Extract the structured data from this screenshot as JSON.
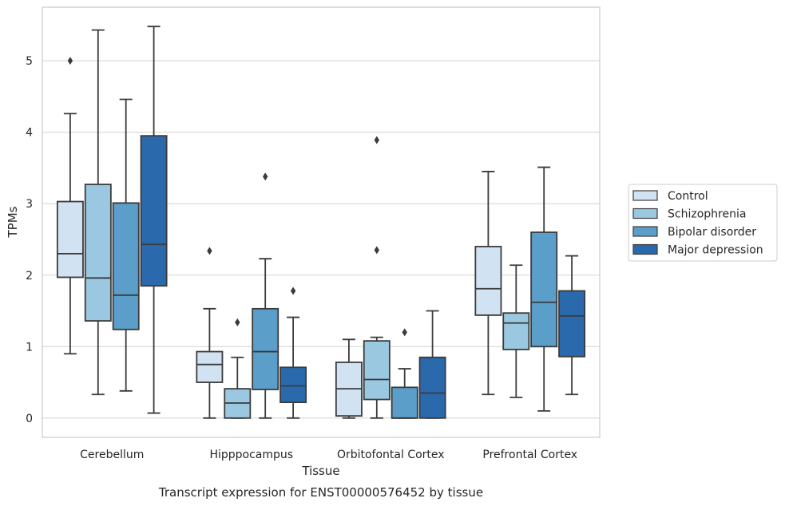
{
  "chart_data": {
    "type": "boxplot",
    "xlabel": "Tissue",
    "ylabel": "TPMs",
    "caption": "Transcript expression for ENST00000576452 by tissue",
    "categories": [
      "Cerebellum",
      "Hipppocampus",
      "Orbitofontal Cortex",
      "Prefrontal Cortex"
    ],
    "ylim": [
      -0.27,
      5.75
    ],
    "yticks": [
      0,
      1,
      2,
      3,
      4,
      5
    ],
    "grid": true,
    "legend_position": "right",
    "series": [
      {
        "name": "Control",
        "color": "#d1e2f2",
        "boxes": [
          {
            "whisker_low": 0.9,
            "q1": 1.97,
            "median": 2.3,
            "q3": 3.03,
            "whisker_high": 4.26,
            "outliers": [
              5.0
            ]
          },
          {
            "whisker_low": 0.0,
            "q1": 0.5,
            "median": 0.75,
            "q3": 0.93,
            "whisker_high": 1.53,
            "outliers": [
              2.34
            ]
          },
          {
            "whisker_low": 0.0,
            "q1": 0.03,
            "median": 0.41,
            "q3": 0.78,
            "whisker_high": 1.1,
            "outliers": []
          },
          {
            "whisker_low": 0.33,
            "q1": 1.44,
            "median": 1.81,
            "q3": 2.4,
            "whisker_high": 3.45,
            "outliers": []
          }
        ]
      },
      {
        "name": "Schizophrenia",
        "color": "#9ac8e0",
        "boxes": [
          {
            "whisker_low": 0.33,
            "q1": 1.36,
            "median": 1.96,
            "q3": 3.27,
            "whisker_high": 5.43,
            "outliers": []
          },
          {
            "whisker_low": 0.0,
            "q1": 0.0,
            "median": 0.21,
            "q3": 0.41,
            "whisker_high": 0.85,
            "outliers": [
              1.34
            ]
          },
          {
            "whisker_low": 0.0,
            "q1": 0.26,
            "median": 0.54,
            "q3": 1.08,
            "whisker_high": 1.13,
            "outliers": [
              2.35,
              3.89
            ]
          },
          {
            "whisker_low": 0.29,
            "q1": 0.96,
            "median": 1.33,
            "q3": 1.47,
            "whisker_high": 2.14,
            "outliers": []
          }
        ]
      },
      {
        "name": "Bipolar disorder",
        "color": "#5a9ec9",
        "boxes": [
          {
            "whisker_low": 0.38,
            "q1": 1.24,
            "median": 1.72,
            "q3": 3.01,
            "whisker_high": 4.46,
            "outliers": []
          },
          {
            "whisker_low": 0.0,
            "q1": 0.4,
            "median": 0.93,
            "q3": 1.53,
            "whisker_high": 2.23,
            "outliers": [
              3.38
            ]
          },
          {
            "whisker_low": 0.0,
            "q1": 0.0,
            "median": 0.0,
            "q3": 0.43,
            "whisker_high": 0.69,
            "outliers": [
              1.2
            ]
          },
          {
            "whisker_low": 0.1,
            "q1": 1.0,
            "median": 1.62,
            "q3": 2.6,
            "whisker_high": 3.51,
            "outliers": []
          }
        ]
      },
      {
        "name": "Major depression",
        "color": "#2a6aac",
        "boxes": [
          {
            "whisker_low": 0.07,
            "q1": 1.85,
            "median": 2.43,
            "q3": 3.95,
            "whisker_high": 5.48,
            "outliers": []
          },
          {
            "whisker_low": 0.0,
            "q1": 0.22,
            "median": 0.45,
            "q3": 0.71,
            "whisker_high": 1.41,
            "outliers": [
              1.78
            ]
          },
          {
            "whisker_low": 0.0,
            "q1": 0.0,
            "median": 0.35,
            "q3": 0.85,
            "whisker_high": 1.5,
            "outliers": []
          },
          {
            "whisker_low": 0.33,
            "q1": 0.86,
            "median": 1.43,
            "q3": 1.78,
            "whisker_high": 2.27,
            "outliers": []
          }
        ]
      }
    ]
  }
}
